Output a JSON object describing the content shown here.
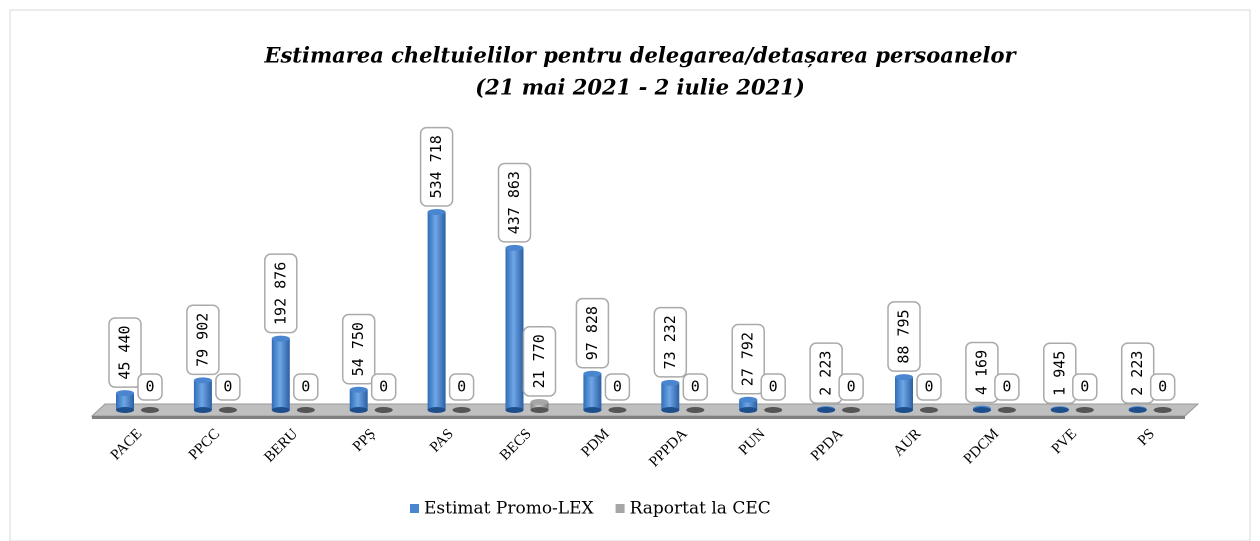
{
  "chart_data": {
    "type": "bar",
    "title": "Estimarea cheltuielilor pentru delegarea/detașarea persoanelor",
    "subtitle": "(21 mai 2021 - 2 iulie 2021)",
    "categories": [
      "PACE",
      "PPCC",
      "BERU",
      "PPȘ",
      "PAS",
      "BECS",
      "PDM",
      "PPPDA",
      "PUN",
      "PPDA",
      "AUR",
      "PDCM",
      "PVE",
      "PS"
    ],
    "series": [
      {
        "name": "Estimat Promo-LEX",
        "color": "#4a86d0",
        "values": [
          45440,
          79902,
          192876,
          54750,
          534718,
          437863,
          97828,
          73232,
          27792,
          2223,
          88795,
          4169,
          1945,
          2223
        ],
        "value_labels": [
          "45 440",
          "79 902",
          "192 876",
          "54 750",
          "534 718",
          "437 863",
          "97 828",
          "73 232",
          "27 792",
          "2 223",
          "88 795",
          "4 169",
          "1 945",
          "2 223"
        ]
      },
      {
        "name": "Raportat la CEC",
        "color": "#a6a6a6",
        "values": [
          0,
          0,
          0,
          0,
          0,
          21770,
          0,
          0,
          0,
          0,
          0,
          0,
          0,
          0
        ],
        "value_labels": [
          "0",
          "0",
          "0",
          "0",
          "0",
          "21 770",
          "0",
          "0",
          "0",
          "0",
          "0",
          "0",
          "0",
          "0"
        ]
      }
    ],
    "legend": "bottom"
  }
}
